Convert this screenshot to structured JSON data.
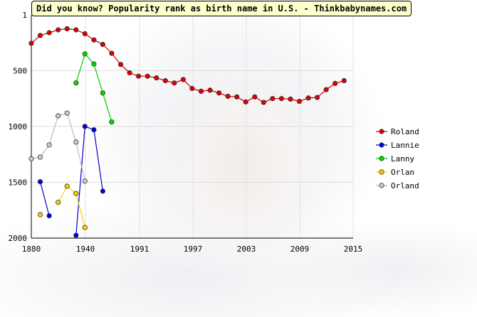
{
  "chart_data": {
    "type": "line",
    "title": "Did you know? Popularity rank as birth name in U.S. - Thinkbabynames.com",
    "xlabel": "",
    "ylabel": "",
    "xlim": [
      1880,
      2015
    ],
    "ylim": [
      2000,
      1
    ],
    "y_reversed": true,
    "grid": true,
    "legend_position": "right",
    "x_ticks": [
      {
        "value": 1880,
        "label": "1880"
      },
      {
        "value": 1940,
        "label": "1940"
      },
      {
        "value": 1991,
        "label": "1991"
      },
      {
        "value": 1997,
        "label": "1997"
      },
      {
        "value": 2003,
        "label": "2003"
      },
      {
        "value": 2009,
        "label": "2009"
      },
      {
        "value": 2015,
        "label": "2015"
      }
    ],
    "y_ticks": [
      {
        "value": 1,
        "label": "1"
      },
      {
        "value": 500,
        "label": "500"
      },
      {
        "value": 1000,
        "label": "1000"
      },
      {
        "value": 1500,
        "label": "1500"
      },
      {
        "value": 2000,
        "label": "2000"
      }
    ],
    "series": [
      {
        "name": "Roland",
        "color": "#dd0000",
        "line_color": "#cc0000",
        "points": [
          {
            "x": 0,
            "y": 255
          },
          {
            "x": 1,
            "y": 185
          },
          {
            "x": 2,
            "y": 160
          },
          {
            "x": 3,
            "y": 135
          },
          {
            "x": 4,
            "y": 125
          },
          {
            "x": 5,
            "y": 135
          },
          {
            "x": 6,
            "y": 170
          },
          {
            "x": 7,
            "y": 225
          },
          {
            "x": 8,
            "y": 265
          },
          {
            "x": 9,
            "y": 345
          },
          {
            "x": 10,
            "y": 445
          },
          {
            "x": 11,
            "y": 520
          },
          {
            "x": 12,
            "y": 550
          },
          {
            "x": 13,
            "y": 550
          },
          {
            "x": 14,
            "y": 565
          },
          {
            "x": 15,
            "y": 590
          },
          {
            "x": 16,
            "y": 610
          },
          {
            "x": 17,
            "y": 580
          },
          {
            "x": 18,
            "y": 660
          },
          {
            "x": 19,
            "y": 685
          },
          {
            "x": 20,
            "y": 675
          },
          {
            "x": 21,
            "y": 700
          },
          {
            "x": 22,
            "y": 730
          },
          {
            "x": 23,
            "y": 735
          },
          {
            "x": 24,
            "y": 780
          },
          {
            "x": 25,
            "y": 735
          },
          {
            "x": 26,
            "y": 785
          },
          {
            "x": 27,
            "y": 750
          },
          {
            "x": 28,
            "y": 750
          },
          {
            "x": 29,
            "y": 755
          },
          {
            "x": 30,
            "y": 775
          },
          {
            "x": 31,
            "y": 745
          },
          {
            "x": 32,
            "y": 740
          },
          {
            "x": 33,
            "y": 670
          },
          {
            "x": 34,
            "y": 615
          },
          {
            "x": 35,
            "y": 590
          }
        ]
      },
      {
        "name": "Lannie",
        "color": "#0000dd",
        "line_color": "#0000cc",
        "points": [
          {
            "x": 1,
            "y": 1495
          },
          {
            "x": 2,
            "y": 1800
          },
          {
            "x": 5,
            "y": 1975
          },
          {
            "x": 6,
            "y": 1000
          },
          {
            "x": 7,
            "y": 1030
          },
          {
            "x": 8,
            "y": 1580
          }
        ]
      },
      {
        "name": "Lanny",
        "color": "#00dd00",
        "line_color": "#00cc00",
        "points": [
          {
            "x": 5,
            "y": 610
          },
          {
            "x": 6,
            "y": 350
          },
          {
            "x": 7,
            "y": 440
          },
          {
            "x": 8,
            "y": 700
          },
          {
            "x": 9,
            "y": 960
          }
        ]
      },
      {
        "name": "Orlan",
        "color": "#ffcc00",
        "line_color": "#ffcc00",
        "points": [
          {
            "x": 1,
            "y": 1790
          },
          {
            "x": 3,
            "y": 1680
          },
          {
            "x": 4,
            "y": 1535
          },
          {
            "x": 5,
            "y": 1600
          },
          {
            "x": 6,
            "y": 1905
          }
        ]
      },
      {
        "name": "Orland",
        "color": "#cccccc",
        "line_color": "#bbbbbb",
        "points": [
          {
            "x": 0,
            "y": 1290
          },
          {
            "x": 1,
            "y": 1275
          },
          {
            "x": 2,
            "y": 1165
          },
          {
            "x": 3,
            "y": 905
          },
          {
            "x": 4,
            "y": 880
          },
          {
            "x": 5,
            "y": 1140
          },
          {
            "x": 6,
            "y": 1490
          }
        ]
      }
    ]
  }
}
